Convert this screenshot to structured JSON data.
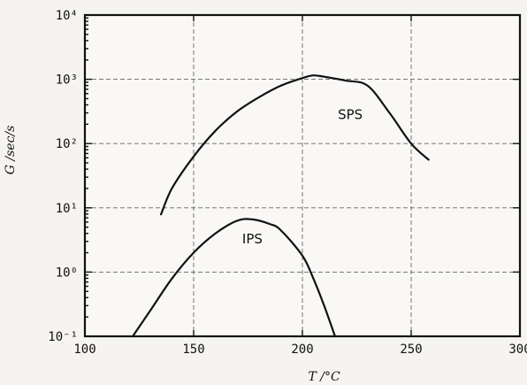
{
  "chart_data": {
    "type": "line",
    "xlabel": "T /°C",
    "ylabel": "G /sec/s",
    "xlim": [
      100,
      300
    ],
    "ylim": [
      0.1,
      10000
    ],
    "yscale": "log",
    "grid": true,
    "x_ticks": [
      {
        "value": 100,
        "label": "100"
      },
      {
        "value": 150,
        "label": "150"
      },
      {
        "value": 200,
        "label": "200"
      },
      {
        "value": 250,
        "label": "250"
      },
      {
        "value": 300,
        "label": "300"
      }
    ],
    "y_ticks": [
      {
        "value": 0.1,
        "label": "10⁻¹"
      },
      {
        "value": 1,
        "label": "10⁰"
      },
      {
        "value": 10,
        "label": "10¹"
      },
      {
        "value": 100,
        "label": "10²"
      },
      {
        "value": 1000,
        "label": "10³"
      },
      {
        "value": 10000,
        "label": "10⁴"
      }
    ],
    "series": [
      {
        "name": "SPS",
        "x": [
          135,
          140,
          150,
          160,
          170,
          180,
          190,
          200,
          205,
          210,
          220,
          230,
          240,
          250,
          258
        ],
        "y": [
          7.9,
          20,
          63,
          158,
          316,
          525,
          794,
          1047,
          1148,
          1096,
          955,
          794,
          302,
          100,
          56
        ]
      },
      {
        "name": "IPS",
        "x": [
          122,
          130,
          140,
          150,
          160,
          170,
          177,
          185,
          190,
          200,
          205,
          210,
          215
        ],
        "y": [
          0.1,
          0.25,
          0.79,
          2,
          3.98,
          6.3,
          6.6,
          5.6,
          4.5,
          1.8,
          0.8,
          0.3,
          0.1
        ]
      }
    ],
    "annotations": [
      {
        "text": "SPS",
        "x": 222,
        "y": 240
      },
      {
        "text": "IPS",
        "x": 177,
        "y": 2.8
      }
    ]
  }
}
